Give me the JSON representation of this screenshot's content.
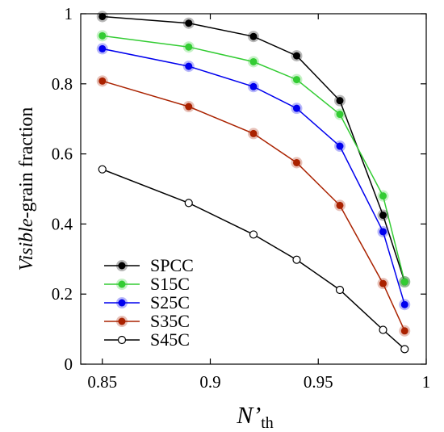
{
  "chart_data": {
    "type": "line",
    "x": [
      0.85,
      0.89,
      0.92,
      0.94,
      0.96,
      0.98,
      0.99
    ],
    "xlim": [
      0.84,
      1.0
    ],
    "ylim": [
      0,
      1.0
    ],
    "xticks": [
      0.85,
      0.9,
      0.95,
      1.0
    ],
    "xtick_labels": [
      "0.85",
      "0.9",
      "0.95",
      "1"
    ],
    "yticks": [
      0,
      0.2,
      0.4,
      0.6,
      0.8,
      1.0
    ],
    "ytick_labels": [
      "0",
      "0.2",
      "0.4",
      "0.6",
      "0.8",
      "1"
    ],
    "ylabel_italic": "Visible",
    "ylabel_rest": "-grain fraction",
    "xlabel_main": "N’",
    "xlabel_sub": "th",
    "grid": false,
    "legend_position": "bottom-left",
    "series": [
      {
        "name": "SPCC",
        "color": "#000000",
        "marker": "filled",
        "values": [
          0.992,
          0.973,
          0.935,
          0.88,
          0.752,
          0.425,
          0.235
        ]
      },
      {
        "name": "S15C",
        "color": "#33cc33",
        "marker": "filled",
        "values": [
          0.937,
          0.905,
          0.863,
          0.812,
          0.713,
          0.48,
          0.235
        ]
      },
      {
        "name": "S25C",
        "color": "#0000ee",
        "marker": "filled",
        "values": [
          0.9,
          0.85,
          0.792,
          0.73,
          0.622,
          0.378,
          0.17
        ]
      },
      {
        "name": "S35C",
        "color": "#aa2200",
        "marker": "filled",
        "values": [
          0.808,
          0.735,
          0.658,
          0.575,
          0.453,
          0.23,
          0.095
        ]
      },
      {
        "name": "S45C",
        "color": "#000000",
        "marker": "open",
        "values": [
          0.556,
          0.46,
          0.37,
          0.298,
          0.212,
          0.098,
          0.043
        ]
      }
    ]
  }
}
